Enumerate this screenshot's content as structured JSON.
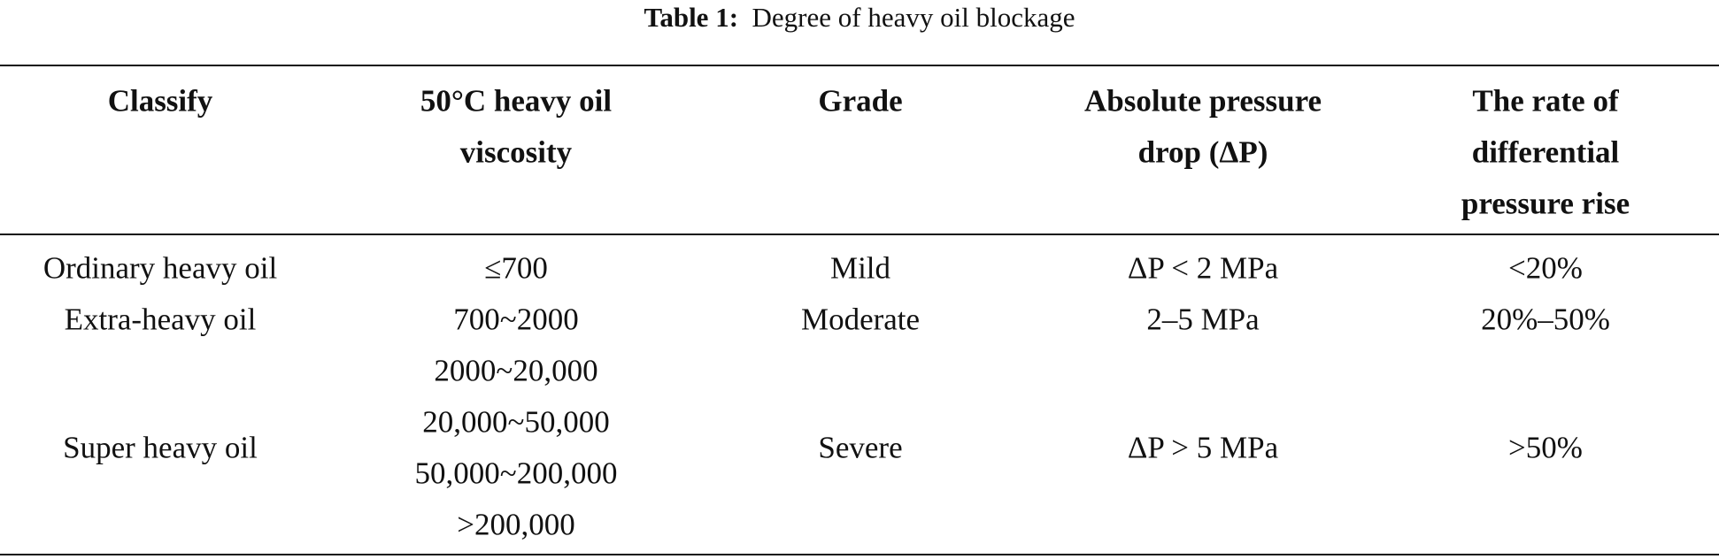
{
  "caption": {
    "label": "Table 1:",
    "text": "Degree of heavy oil blockage"
  },
  "table": {
    "header": [
      [
        "Classify"
      ],
      [
        "50°C heavy oil",
        "viscosity"
      ],
      [
        "Grade"
      ],
      [
        "Absolute pressure",
        "drop (ΔP)"
      ],
      [
        "The rate of",
        "differential",
        "pressure rise"
      ]
    ],
    "rows": [
      [
        [
          "Ordinary heavy oil"
        ],
        [
          "≤700"
        ],
        [
          "Mild"
        ],
        [
          "ΔP < 2 MPa"
        ],
        [
          "<20%"
        ]
      ],
      [
        [
          "Extra-heavy oil"
        ],
        [
          "700~2000"
        ],
        [
          "Moderate"
        ],
        [
          "2–5 MPa"
        ],
        [
          "20%–50%"
        ]
      ],
      [
        [
          "Super heavy oil"
        ],
        [
          "2000~20,000",
          "20,000~50,000",
          "50,000~200,000",
          ">200,000"
        ],
        [
          "Severe"
        ],
        [
          "ΔP > 5 MPa"
        ],
        [
          ">50%"
        ]
      ]
    ]
  }
}
